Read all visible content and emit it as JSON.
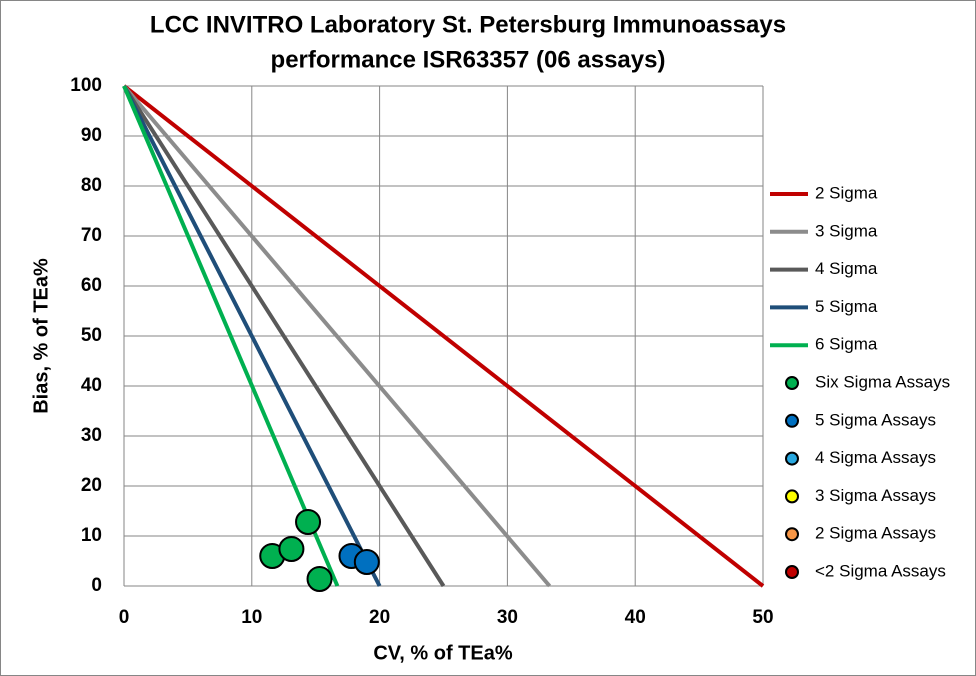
{
  "chart_data": {
    "type": "scatter",
    "title": [
      "LCC INVITRO Laboratory St. Petersburg Immunoassays",
      "performance ISR63357 (06 assays)"
    ],
    "xlabel": "CV, % of TEa%",
    "ylabel": "Bias, % of TEa%",
    "xlim": [
      0,
      50
    ],
    "ylim": [
      0,
      100
    ],
    "xticks": [
      0,
      10,
      20,
      30,
      40,
      50
    ],
    "yticks": [
      0,
      10,
      20,
      30,
      40,
      50,
      60,
      70,
      80,
      90,
      100
    ],
    "grid": true,
    "legend": "right",
    "series": [
      {
        "name": "2 Sigma",
        "type": "line",
        "color": "#c00000",
        "x": [
          0,
          50
        ],
        "values": [
          100,
          0
        ]
      },
      {
        "name": "3 Sigma",
        "type": "line",
        "color": "#8c8c8c",
        "x": [
          0,
          33.3
        ],
        "values": [
          100,
          0
        ]
      },
      {
        "name": "4 Sigma",
        "type": "line",
        "color": "#595959",
        "x": [
          0,
          25
        ],
        "values": [
          100,
          0
        ]
      },
      {
        "name": "5 Sigma",
        "type": "line",
        "color": "#1f4e79",
        "x": [
          0,
          20
        ],
        "values": [
          100,
          0
        ]
      },
      {
        "name": "6 Sigma",
        "type": "line",
        "color": "#00b050",
        "x": [
          0,
          16.7
        ],
        "values": [
          100,
          0
        ]
      },
      {
        "name": "Six Sigma Assays",
        "type": "scatter",
        "color": "#00b050",
        "x": [
          11.6,
          13.1,
          14.4,
          15.3
        ],
        "values": [
          6.0,
          7.4,
          12.8,
          1.4
        ]
      },
      {
        "name": "5 Sigma Assays",
        "type": "scatter",
        "color": "#0070c0",
        "x": [
          17.8,
          19.0
        ],
        "values": [
          6.0,
          4.8
        ]
      },
      {
        "name": "4 Sigma Assays",
        "type": "scatter",
        "color": "#29a8e0",
        "x": [],
        "values": []
      },
      {
        "name": "3 Sigma Assays",
        "type": "scatter",
        "color": "#ffff00",
        "x": [],
        "values": []
      },
      {
        "name": "2 Sigma Assays",
        "type": "scatter",
        "color": "#f79646",
        "x": [],
        "values": []
      },
      {
        "name": "<2 Sigma Assays",
        "type": "scatter",
        "color": "#c00000",
        "x": [],
        "values": []
      }
    ]
  }
}
